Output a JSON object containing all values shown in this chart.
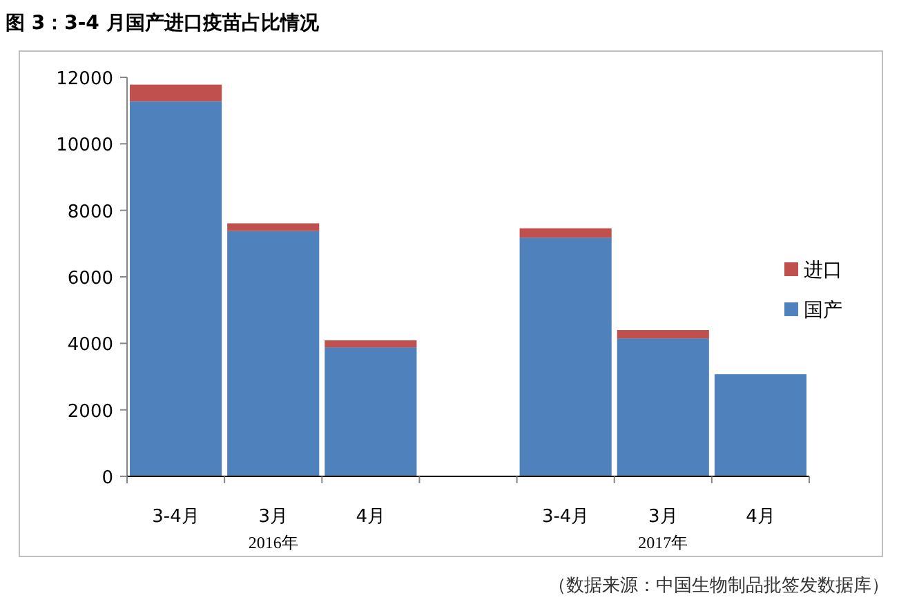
{
  "chart_data": {
    "type": "bar",
    "title": "图 3：3-4 月国产进口疫苗占比情况",
    "categories": [
      "3-4月",
      "3月",
      "4月",
      null,
      "3-4月",
      "3月",
      "4月"
    ],
    "stacked": true,
    "series": [
      {
        "name": "国产",
        "color": "#4f81bd",
        "values": [
          11280,
          7380,
          3880,
          null,
          7180,
          4150,
          3070
        ]
      },
      {
        "name": "进口",
        "color": "#c0504d",
        "values": [
          500,
          230,
          210,
          null,
          280,
          250,
          0
        ]
      }
    ],
    "ylim": [
      0,
      12000
    ],
    "yticks": [
      0,
      2000,
      4000,
      6000,
      8000,
      10000,
      12000
    ],
    "legend": "right",
    "annotations": [
      "2016年",
      "2017年",
      "（数据来源：中国生物制品批签发数据库）"
    ]
  }
}
